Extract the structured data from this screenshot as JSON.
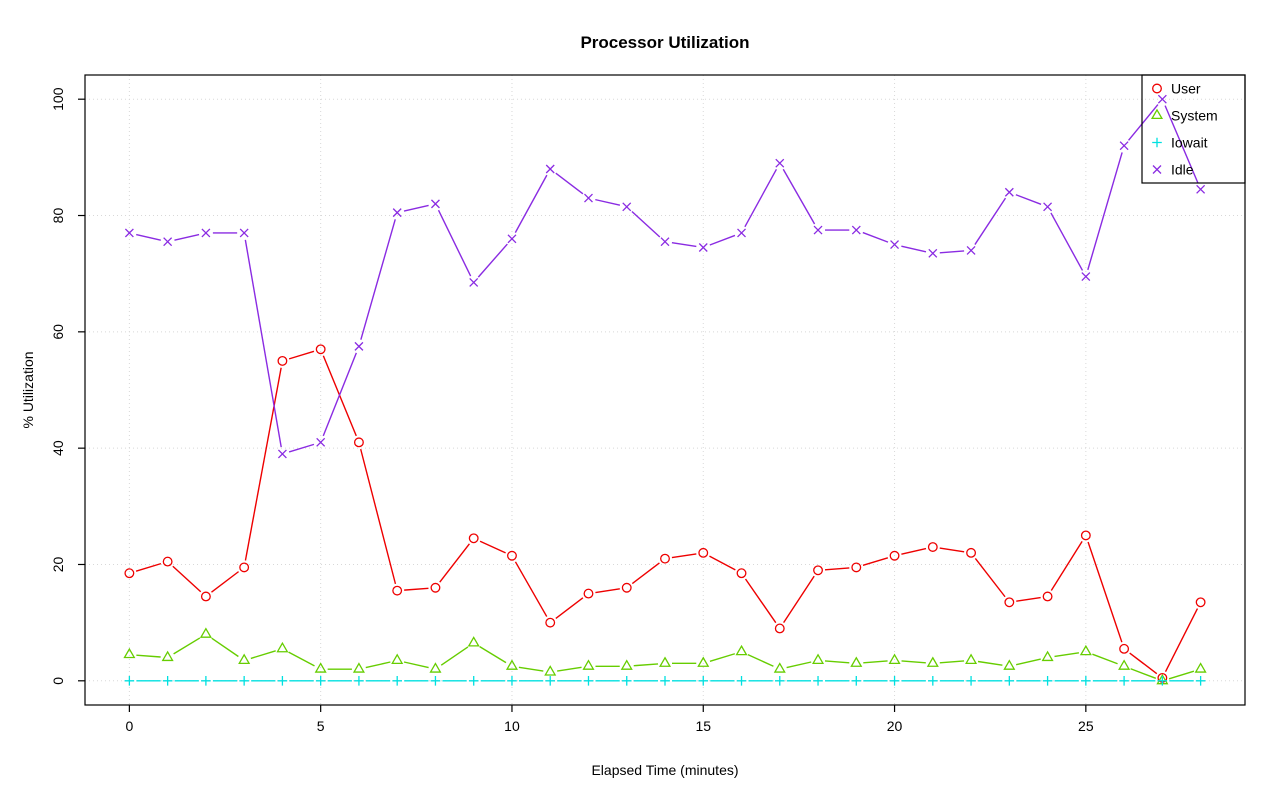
{
  "title": "Processor Utilization",
  "xlabel": "Elapsed Time (minutes)",
  "ylabel": "% Utilization",
  "chart_data": {
    "type": "line",
    "title": "Processor Utilization",
    "xlabel": "Elapsed Time (minutes)",
    "ylabel": "% Utilization",
    "x": [
      0,
      1,
      2,
      3,
      4,
      5,
      6,
      7,
      8,
      9,
      10,
      11,
      12,
      13,
      14,
      15,
      16,
      17,
      18,
      19,
      20,
      21,
      22,
      23,
      24,
      25,
      26,
      27,
      28
    ],
    "series": [
      {
        "name": "User",
        "symbol": "circle",
        "color": "#ee0000",
        "values": [
          18.5,
          20.5,
          14.5,
          19.5,
          55,
          57,
          41,
          15.5,
          16,
          24.5,
          21.5,
          10,
          15,
          16,
          21,
          22,
          18.5,
          9,
          19,
          19.5,
          21.5,
          23,
          22,
          13.5,
          14.5,
          25,
          5.5,
          0.5,
          13.5
        ]
      },
      {
        "name": "System",
        "symbol": "triangle",
        "color": "#66cd00",
        "values": [
          4.5,
          4,
          8,
          3.5,
          5.5,
          2,
          2,
          3.5,
          2,
          6.5,
          2.5,
          1.5,
          2.5,
          2.5,
          3,
          3,
          5,
          2,
          3.5,
          3,
          3.5,
          3,
          3.5,
          2.5,
          4,
          5,
          2.5,
          0,
          2
        ]
      },
      {
        "name": "Iowait",
        "symbol": "plus",
        "color": "#00e0e0",
        "values": [
          0,
          0,
          0,
          0,
          0,
          0,
          0,
          0,
          0,
          0,
          0,
          0,
          0,
          0,
          0,
          0,
          0,
          0,
          0,
          0,
          0,
          0,
          0,
          0,
          0,
          0,
          0,
          0,
          0
        ]
      },
      {
        "name": "Idle",
        "symbol": "x",
        "color": "#8a2be2",
        "values": [
          77,
          75.5,
          77,
          77,
          39,
          41,
          57.5,
          80.5,
          82,
          68.5,
          76,
          88,
          83,
          81.5,
          75.5,
          74.5,
          77,
          89,
          77.5,
          77.5,
          75,
          73.5,
          74,
          84,
          81.5,
          69.5,
          92,
          100,
          84.5
        ]
      }
    ],
    "xticks": [
      0,
      5,
      10,
      15,
      20,
      25
    ],
    "yticks": [
      0,
      20,
      40,
      60,
      80,
      100
    ],
    "xlim": [
      -1.16,
      29.16
    ],
    "ylim": [
      -4.16,
      104.16
    ],
    "grid": true,
    "legend_position": "top-right",
    "grid_color": "#d8d8d8",
    "axis_color": "#000000"
  }
}
